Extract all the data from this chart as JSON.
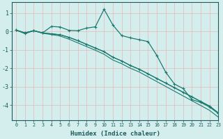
{
  "xlabel": "Humidex (Indice chaleur)",
  "background_color": "#d4eeee",
  "grid_color": "#c0dede",
  "line_color": "#1a7a6e",
  "xlim": [
    -0.5,
    23
  ],
  "ylim": [
    -4.8,
    1.6
  ],
  "yticks": [
    1,
    0,
    -1,
    -2,
    -3,
    -4
  ],
  "xticks": [
    0,
    1,
    2,
    3,
    4,
    5,
    6,
    7,
    8,
    9,
    10,
    11,
    12,
    13,
    14,
    15,
    16,
    17,
    18,
    19,
    20,
    21,
    22,
    23
  ],
  "x": [
    0,
    1,
    2,
    3,
    4,
    5,
    6,
    7,
    8,
    9,
    10,
    11,
    12,
    13,
    14,
    15,
    16,
    17,
    18,
    19,
    20,
    21,
    22,
    23
  ],
  "line1": [
    0.07,
    -0.12,
    0.04,
    -0.08,
    0.27,
    0.24,
    0.06,
    0.04,
    0.18,
    0.25,
    1.2,
    0.35,
    -0.22,
    -0.35,
    -0.45,
    -0.55,
    -1.3,
    -2.2,
    -2.85,
    -3.1,
    -3.7,
    -3.85,
    -4.1,
    -4.45
  ],
  "line2": [
    0.07,
    -0.08,
    0.04,
    -0.08,
    -0.13,
    -0.18,
    -0.32,
    -0.5,
    -0.7,
    -0.9,
    -1.1,
    -1.4,
    -1.6,
    -1.85,
    -2.05,
    -2.3,
    -2.55,
    -2.8,
    -3.05,
    -3.3,
    -3.55,
    -3.8,
    -4.05,
    -4.42
  ],
  "line3": [
    0.07,
    -0.08,
    0.04,
    -0.08,
    -0.13,
    -0.18,
    -0.32,
    -0.5,
    -0.7,
    -0.9,
    -1.1,
    -1.4,
    -1.6,
    -1.85,
    -2.05,
    -2.3,
    -2.55,
    -2.8,
    -3.05,
    -3.3,
    -3.55,
    -3.8,
    -4.05,
    -4.42
  ],
  "line4": [
    0.07,
    -0.08,
    0.04,
    -0.1,
    -0.17,
    -0.25,
    -0.42,
    -0.62,
    -0.82,
    -1.02,
    -1.24,
    -1.55,
    -1.75,
    -2.0,
    -2.2,
    -2.46,
    -2.72,
    -2.98,
    -3.24,
    -3.5,
    -3.76,
    -4.02,
    -4.28,
    -4.65
  ]
}
